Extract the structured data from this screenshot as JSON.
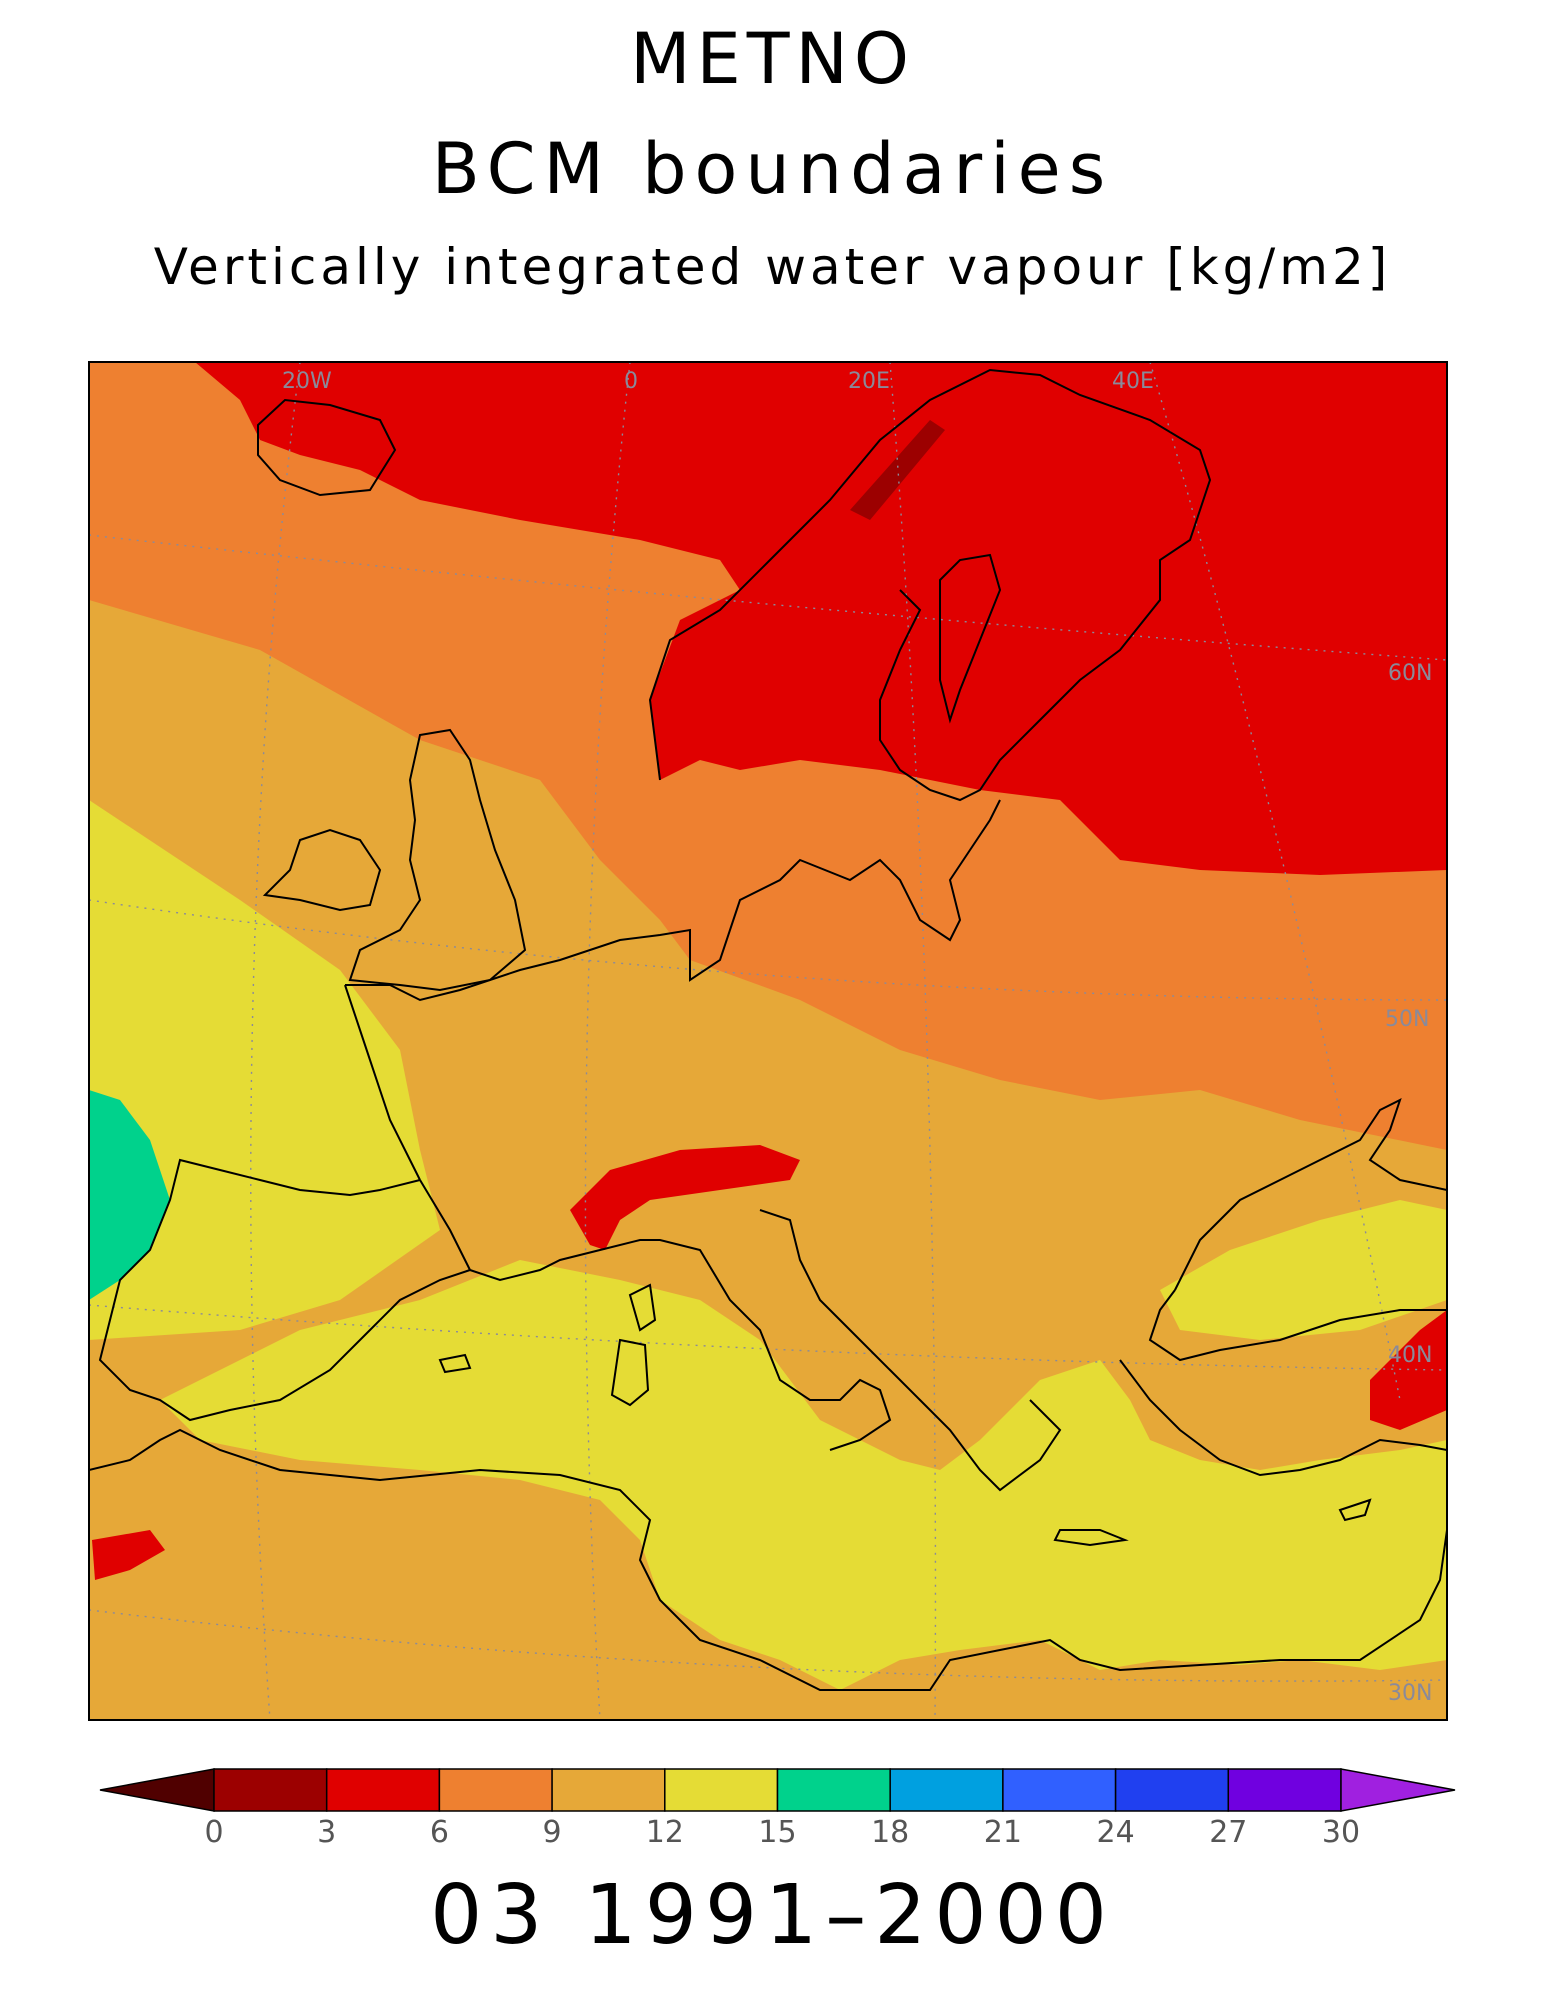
{
  "titles": {
    "line1": "METNO",
    "line2": "BCM boundaries",
    "line3": "Vertically integrated water vapour [kg/m2]"
  },
  "period": "03 1991–2000",
  "map": {
    "lon_labels": [
      "20W",
      "0",
      "20E",
      "40E"
    ],
    "lat_labels": [
      "60N",
      "50N",
      "40N",
      "30N"
    ],
    "field_legend": [
      {
        "range": "3-6",
        "color": "#e00000",
        "region": "Scandinavia, northern Russia, Norwegian Sea, Alps"
      },
      {
        "range": "6-9",
        "color": "#ee8030",
        "region": "North Atlantic, central and eastern Europe"
      },
      {
        "range": "9-12",
        "color": "#e6a838",
        "region": "Western Europe, Iberia, Balkans, Sahara"
      },
      {
        "range": "12-15",
        "color": "#e5dc35",
        "region": "Atlantic west of Europe, Mediterranean Sea, Black Sea"
      },
      {
        "range": "15-18",
        "color": "#00d28c",
        "region": "Subtropical Atlantic (SW corner)"
      }
    ]
  },
  "colorbar": {
    "ticks": [
      "0",
      "3",
      "6",
      "9",
      "12",
      "15",
      "18",
      "21",
      "24",
      "27",
      "30"
    ],
    "colors": [
      "#9c0000",
      "#e00000",
      "#ee8030",
      "#e6a838",
      "#e5dc35",
      "#00d28c",
      "#00a0e0",
      "#3060ff",
      "#2040f0",
      "#7000e0"
    ],
    "under_color": "#500000",
    "over_color": "#a020e0"
  }
}
